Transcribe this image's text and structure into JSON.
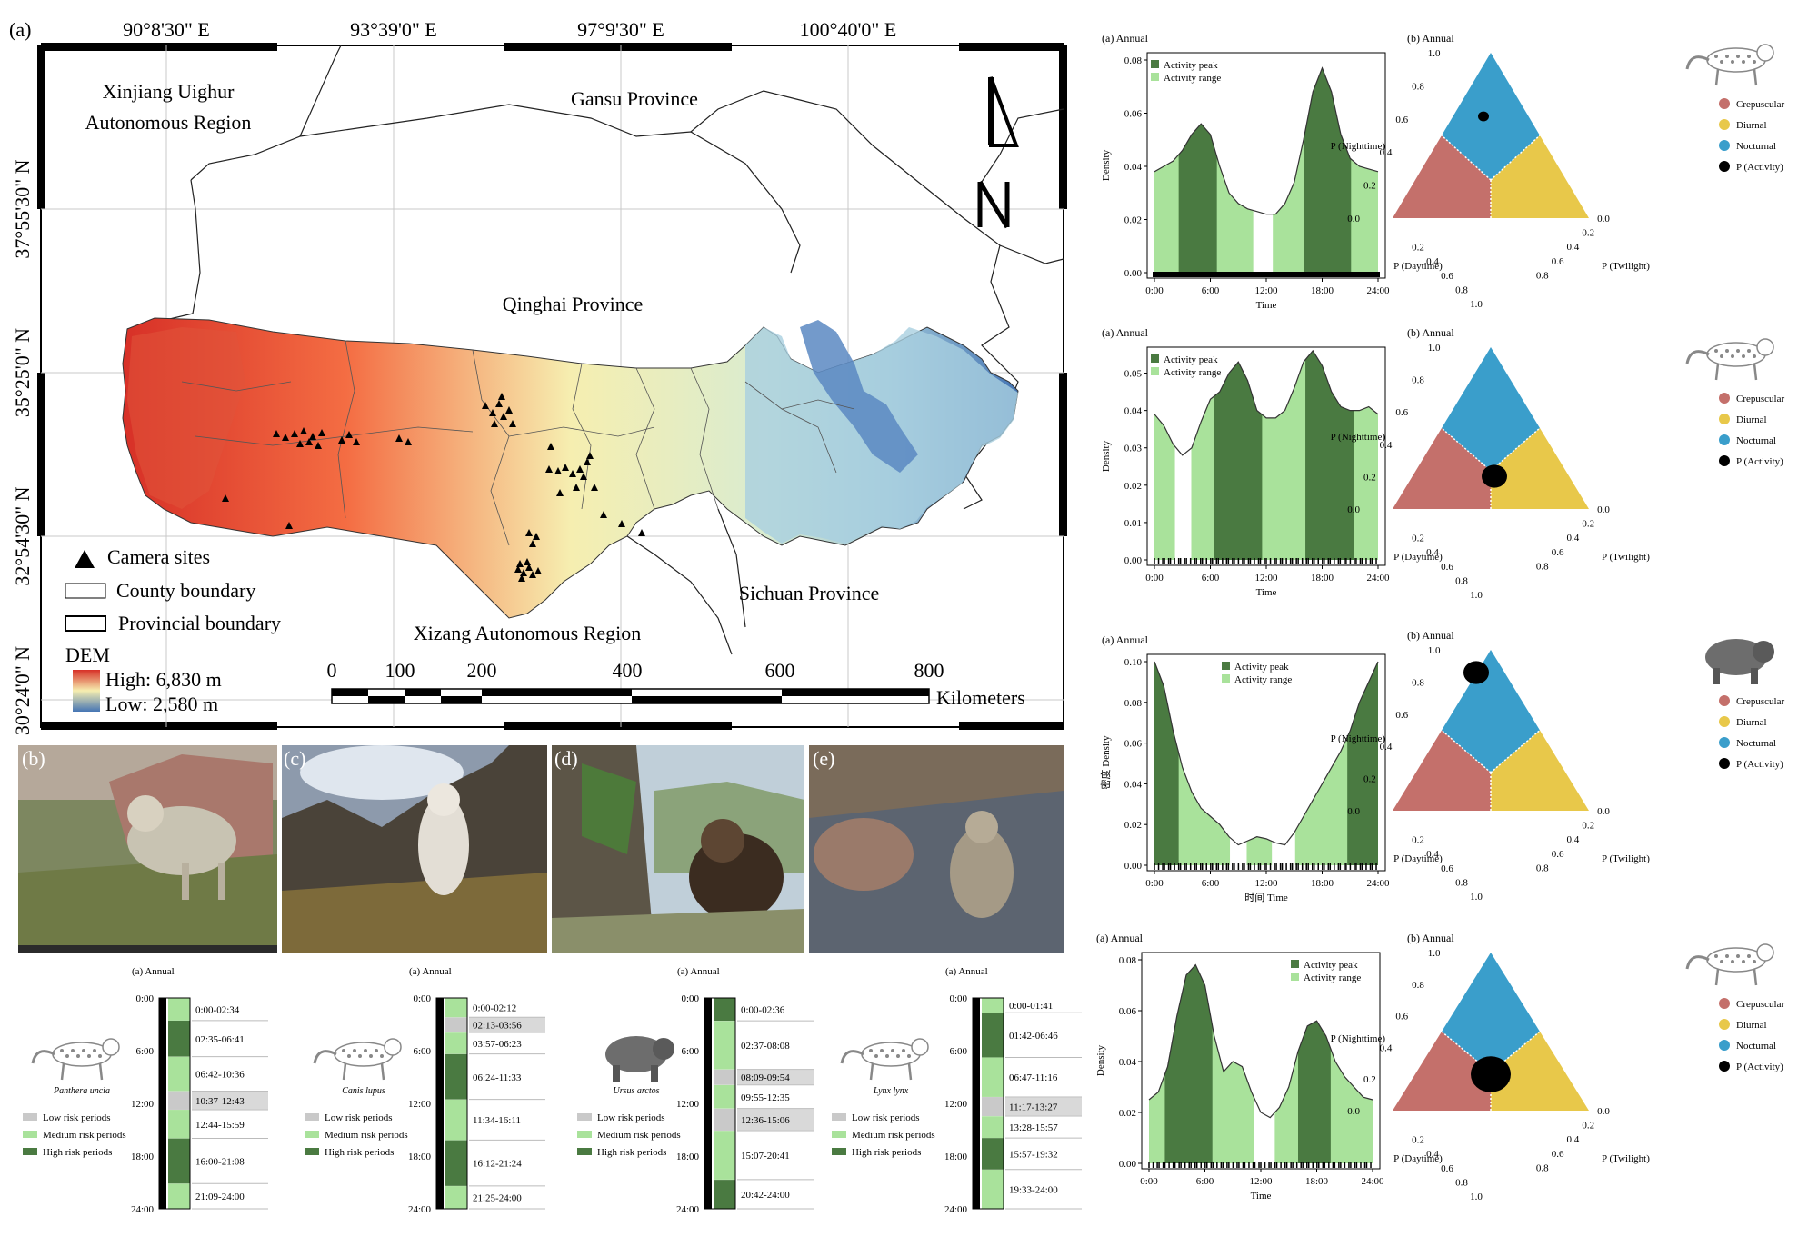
{
  "colors": {
    "dark_green": "#4a7a41",
    "light_green": "#a9e29b",
    "grey": "#c9c9c9",
    "tern_blue": "#3a9ecb",
    "tern_red": "#c4706b",
    "tern_yellow": "#e8c84a",
    "dem_high": "#d73027",
    "dem_mid": "#f6eeb0",
    "dem_low": "#4575b4"
  },
  "map": {
    "panel_label": "(a)",
    "top_coords": [
      "90°8'30\" E",
      "93°39'0\" E",
      "97°9'30\" E",
      "100°40'0\" E"
    ],
    "left_coords": [
      "37°55'30\" N",
      "35°25'0\" N",
      "32°54'30\" N",
      "30°24'0\" N"
    ],
    "regions": {
      "xinjiang_1": "Xinjiang Uighur",
      "xinjiang_2": "Autonomous Region",
      "gansu": "Gansu Province",
      "qinghai": "Qinghai Province",
      "sichuan": "Sichuan Province",
      "xizang": "Xizang Autonomous Region"
    },
    "legend": {
      "camera": "Camera sites",
      "county": "County boundary",
      "provincial": "Provincial boundary",
      "dem": "DEM",
      "high": "High: 6,830 m",
      "low": "Low: 2,580 m"
    },
    "scale_ticks": [
      "0",
      "100",
      "200",
      "400",
      "600",
      "800"
    ],
    "scale_unit": "Kilometers",
    "north": "N"
  },
  "photos": [
    {
      "label": "(b)",
      "subject": "snow-leopard"
    },
    {
      "label": "(c)",
      "subject": "wolf"
    },
    {
      "label": "(d)",
      "subject": "brown-bear"
    },
    {
      "label": "(e)",
      "subject": "lynx"
    }
  ],
  "density_panels": [
    {
      "title": "(a) Annual",
      "legend": [
        "Activity peak",
        "Activity range"
      ],
      "ylabel": "Density",
      "xlabel": "Time",
      "yticks": [
        "0.00",
        "0.02",
        "0.04",
        "0.06",
        "0.08"
      ],
      "xticks": [
        "0:00",
        "6:00",
        "12:00",
        "18:00",
        "24:00"
      ]
    },
    {
      "title": "(a) Annual",
      "legend": [
        "Activity peak",
        "Activity range"
      ],
      "ylabel": "Density",
      "xlabel": "Time",
      "yticks": [
        "0.00",
        "0.01",
        "0.02",
        "0.03",
        "0.04",
        "0.05"
      ],
      "xticks": [
        "0:00",
        "6:00",
        "12:00",
        "18:00",
        "24:00"
      ]
    },
    {
      "title": "(a) Annual",
      "legend": [
        "Activity peak",
        "Activity range"
      ],
      "ylabel": "密度 Density",
      "xlabel": "时间 Time",
      "yticks": [
        "0.00",
        "0.02",
        "0.04",
        "0.06",
        "0.08",
        "0.10"
      ],
      "xticks": [
        "0:00",
        "6:00",
        "12:00",
        "18:00",
        "24:00"
      ]
    },
    {
      "title": "(a) Annual",
      "legend": [
        "Activity peak",
        "Activity range"
      ],
      "ylabel": "Density",
      "xlabel": "Time",
      "yticks": [
        "0.00",
        "0.02",
        "0.04",
        "0.06",
        "0.08"
      ],
      "xticks": [
        "0:00",
        "6:00",
        "12:00",
        "18:00",
        "24:00"
      ]
    }
  ],
  "ternary_panels": [
    {
      "title": "(b) Annual",
      "animal": "snow-leopard"
    },
    {
      "title": "(b) Annual",
      "animal": "wolf"
    },
    {
      "title": "(b) Annual",
      "animal": "brown-bear"
    },
    {
      "title": "(b) Annual",
      "animal": "lynx"
    }
  ],
  "ternary": {
    "left_axis": "P (Nighttime)",
    "bottom_axis": "P (Daytime)",
    "right_axis": "P (Twilight)",
    "ticks_left": [
      "0.0",
      "0.2",
      "0.4",
      "0.6",
      "0.8",
      "1.0"
    ],
    "ticks_bottom": [
      "0.2",
      "0.4",
      "0.6",
      "0.8",
      "1.0"
    ],
    "ticks_right": [
      "0.0",
      "0.2",
      "0.4",
      "0.6",
      "0.8"
    ],
    "legend": [
      "Crepuscular",
      "Diurnal",
      "Nocturnal",
      "P (Activity)"
    ]
  },
  "risk_panels": [
    {
      "title": "(a) Annual",
      "species": "Panthera uncia",
      "periods": [
        {
          "label": "0:00-02:34",
          "start": 0,
          "end": 2.57,
          "level": "medium"
        },
        {
          "label": "02:35-06:41",
          "start": 2.58,
          "end": 6.68,
          "level": "high"
        },
        {
          "label": "06:42-10:36",
          "start": 6.7,
          "end": 10.6,
          "level": "medium"
        },
        {
          "label": "10:37-12:43",
          "start": 10.62,
          "end": 12.72,
          "level": "low"
        },
        {
          "label": "12:44-15:59",
          "start": 12.73,
          "end": 15.98,
          "level": "medium"
        },
        {
          "label": "16:00-21:08",
          "start": 16.0,
          "end": 21.13,
          "level": "high"
        },
        {
          "label": "21:09-24:00",
          "start": 21.15,
          "end": 24,
          "level": "medium"
        }
      ]
    },
    {
      "title": "(a) Annual",
      "species": "Canis lupus",
      "periods": [
        {
          "label": "0:00-02:12",
          "start": 0,
          "end": 2.2,
          "level": "medium"
        },
        {
          "label": "02:13-03:56",
          "start": 2.22,
          "end": 3.93,
          "level": "low"
        },
        {
          "label": "03:57-06:23",
          "start": 3.95,
          "end": 6.38,
          "level": "medium"
        },
        {
          "label": "06:24-11:33",
          "start": 6.4,
          "end": 11.55,
          "level": "high"
        },
        {
          "label": "11:34-16:11",
          "start": 11.57,
          "end": 16.18,
          "level": "medium"
        },
        {
          "label": "16:12-21:24",
          "start": 16.2,
          "end": 21.4,
          "level": "high"
        },
        {
          "label": "21:25-24:00",
          "start": 21.42,
          "end": 24,
          "level": "medium"
        }
      ]
    },
    {
      "title": "(a) Annual",
      "species": "Ursus arctos",
      "periods": [
        {
          "label": "0:00-02:36",
          "start": 0,
          "end": 2.6,
          "level": "high"
        },
        {
          "label": "02:37-08:08",
          "start": 2.62,
          "end": 8.13,
          "level": "medium"
        },
        {
          "label": "08:09-09:54",
          "start": 8.15,
          "end": 9.9,
          "level": "low"
        },
        {
          "label": "09:55-12:35",
          "start": 9.92,
          "end": 12.58,
          "level": "medium"
        },
        {
          "label": "12:36-15:06",
          "start": 12.6,
          "end": 15.1,
          "level": "low"
        },
        {
          "label": "15:07-20:41",
          "start": 15.12,
          "end": 20.68,
          "level": "medium"
        },
        {
          "label": "20:42-24:00",
          "start": 20.7,
          "end": 24,
          "level": "high"
        }
      ]
    },
    {
      "title": "(a) Annual",
      "species": "Lynx lynx",
      "periods": [
        {
          "label": "0:00-01:41",
          "start": 0,
          "end": 1.68,
          "level": "medium"
        },
        {
          "label": "01:42-06:46",
          "start": 1.7,
          "end": 6.77,
          "level": "high"
        },
        {
          "label": "06:47-11:16",
          "start": 6.78,
          "end": 11.27,
          "level": "medium"
        },
        {
          "label": "11:17-13:27",
          "start": 11.28,
          "end": 13.45,
          "level": "low"
        },
        {
          "label": "13:28-15:57",
          "start": 13.47,
          "end": 15.95,
          "level": "medium"
        },
        {
          "label": "15:57-19:32",
          "start": 15.95,
          "end": 19.53,
          "level": "high"
        },
        {
          "label": "19:33-24:00",
          "start": 19.55,
          "end": 24,
          "level": "medium"
        }
      ]
    }
  ],
  "risk_legend": [
    "Low risk periods",
    "Medium risk periods",
    "High risk periods"
  ],
  "risk_time_ticks": [
    "0:00",
    "6:00",
    "12:00",
    "18:00",
    "24:00"
  ],
  "chart_data": [
    {
      "type": "area",
      "title": "(a) Annual - Panthera uncia",
      "xlabel": "Time",
      "ylabel": "Density",
      "xlim": [
        0,
        24
      ],
      "ylim": [
        0,
        0.08
      ],
      "x": [
        0,
        1,
        2,
        3,
        4,
        5,
        6,
        7,
        8,
        9,
        10,
        11,
        12,
        13,
        14,
        15,
        16,
        17,
        18,
        19,
        20,
        21,
        22,
        23,
        24
      ],
      "values": [
        0.038,
        0.04,
        0.042,
        0.046,
        0.052,
        0.056,
        0.052,
        0.04,
        0.03,
        0.026,
        0.024,
        0.023,
        0.022,
        0.022,
        0.026,
        0.034,
        0.05,
        0.068,
        0.077,
        0.068,
        0.052,
        0.043,
        0.04,
        0.039,
        0.038
      ],
      "peak_ranges": [
        [
          2.6,
          6.7
        ],
        [
          16.0,
          21.1
        ]
      ],
      "activity_ranges": [
        [
          0,
          10.6
        ],
        [
          12.7,
          24
        ]
      ]
    },
    {
      "type": "area",
      "title": "(a) Annual - Canis lupus",
      "xlabel": "Time",
      "ylabel": "Density",
      "xlim": [
        0,
        24
      ],
      "ylim": [
        0,
        0.055
      ],
      "x": [
        0,
        1,
        2,
        3,
        4,
        5,
        6,
        7,
        8,
        9,
        10,
        11,
        12,
        13,
        14,
        15,
        16,
        17,
        18,
        19,
        20,
        21,
        22,
        23,
        24
      ],
      "values": [
        0.039,
        0.036,
        0.031,
        0.028,
        0.03,
        0.037,
        0.043,
        0.045,
        0.05,
        0.053,
        0.048,
        0.04,
        0.038,
        0.038,
        0.04,
        0.046,
        0.053,
        0.056,
        0.052,
        0.045,
        0.041,
        0.04,
        0.04,
        0.041,
        0.039
      ],
      "peak_ranges": [
        [
          6.4,
          11.55
        ],
        [
          16.2,
          21.4
        ]
      ],
      "activity_ranges": [
        [
          0,
          2.2
        ],
        [
          3.95,
          24
        ]
      ]
    },
    {
      "type": "area",
      "title": "(a) Annual - Ursus arctos",
      "xlabel": "时间 Time",
      "ylabel": "密度 Density",
      "xlim": [
        0,
        24
      ],
      "ylim": [
        0,
        0.1
      ],
      "x": [
        0,
        1,
        2,
        3,
        4,
        5,
        6,
        7,
        8,
        9,
        10,
        11,
        12,
        13,
        14,
        15,
        16,
        17,
        18,
        19,
        20,
        21,
        22,
        23,
        24
      ],
      "values": [
        0.1,
        0.088,
        0.066,
        0.048,
        0.036,
        0.028,
        0.024,
        0.02,
        0.014,
        0.01,
        0.012,
        0.014,
        0.013,
        0.011,
        0.01,
        0.016,
        0.024,
        0.032,
        0.04,
        0.048,
        0.056,
        0.066,
        0.08,
        0.09,
        0.1
      ],
      "peak_ranges": [
        [
          0,
          2.6
        ],
        [
          20.7,
          24
        ]
      ],
      "activity_ranges": [
        [
          0,
          8.1
        ],
        [
          9.9,
          12.6
        ],
        [
          15.1,
          24
        ]
      ]
    },
    {
      "type": "area",
      "title": "(a) Annual - Lynx lynx",
      "xlabel": "Time",
      "ylabel": "Density",
      "xlim": [
        0,
        24
      ],
      "ylim": [
        0,
        0.08
      ],
      "x": [
        0,
        1,
        2,
        3,
        4,
        5,
        6,
        7,
        8,
        9,
        10,
        11,
        12,
        13,
        14,
        15,
        16,
        17,
        18,
        19,
        20,
        21,
        22,
        23,
        24
      ],
      "values": [
        0.025,
        0.028,
        0.038,
        0.058,
        0.074,
        0.078,
        0.07,
        0.05,
        0.036,
        0.04,
        0.038,
        0.028,
        0.02,
        0.018,
        0.022,
        0.03,
        0.044,
        0.054,
        0.056,
        0.05,
        0.04,
        0.034,
        0.03,
        0.026,
        0.025
      ],
      "peak_ranges": [
        [
          1.7,
          6.8
        ],
        [
          16.0,
          19.5
        ]
      ],
      "activity_ranges": [
        [
          0,
          11.3
        ],
        [
          13.5,
          24
        ]
      ]
    }
  ]
}
